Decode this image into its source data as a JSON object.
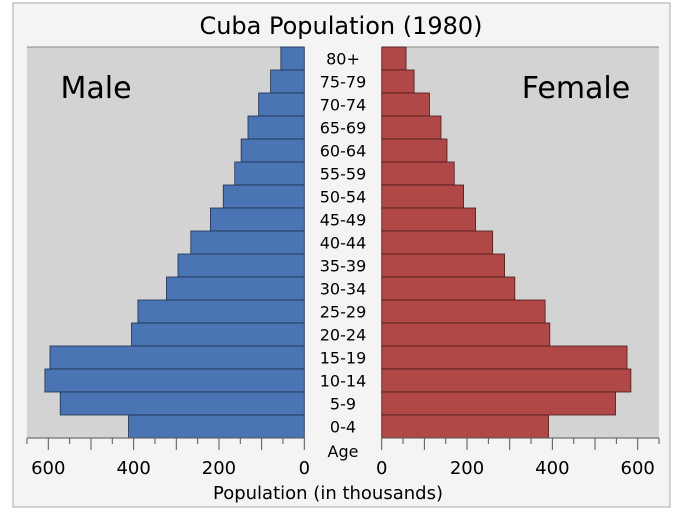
{
  "chart_data": {
    "type": "bar",
    "title": "Cuba Population (1980)",
    "xlabel": "Population (in thousands)",
    "ylabel": "Age",
    "xlim": [
      0,
      650
    ],
    "x_ticks": [
      0,
      200,
      400,
      600
    ],
    "grid": false,
    "categories": [
      "80+",
      "75-79",
      "70-74",
      "65-69",
      "60-64",
      "55-59",
      "50-54",
      "45-49",
      "40-44",
      "35-39",
      "30-34",
      "25-29",
      "20-24",
      "15-19",
      "10-14",
      "5-9",
      "0-4"
    ],
    "series": [
      {
        "name": "Male",
        "color": "#4a74b4",
        "values": [
          55,
          79,
          107,
          132,
          148,
          163,
          190,
          220,
          266,
          296,
          323,
          390,
          405,
          596,
          608,
          572,
          412
        ]
      },
      {
        "name": "Female",
        "color": "#b04848",
        "values": [
          57,
          76,
          112,
          139,
          153,
          170,
          192,
          220,
          260,
          288,
          312,
          383,
          394,
          575,
          584,
          548,
          391
        ]
      }
    ],
    "colors": {
      "plot_background": "#d3d3d3",
      "page_background": "#f4f4f4"
    }
  }
}
